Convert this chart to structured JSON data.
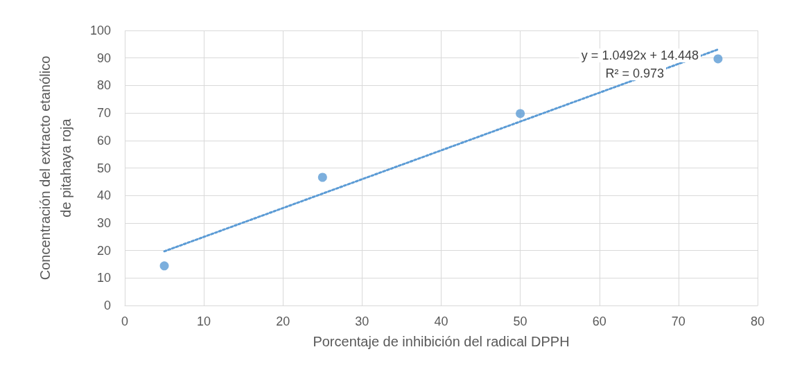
{
  "chart_data": {
    "type": "scatter",
    "xlabel": "Porcentaje de inhibición del radical DPPH",
    "ylabel": "Concentración del extracto etanólico\nde pitahaya roja",
    "series": [
      {
        "color": "#5b9bd5",
        "marker": "circle",
        "x": [
          5,
          25,
          50,
          75
        ],
        "values": [
          14.4,
          46.6,
          69.8,
          89.7
        ]
      },
      {
        "type": "line",
        "color": "#5b9bd5",
        "marker": "none",
        "line_style": "dotted",
        "x": [
          5,
          75
        ],
        "values": [
          19.7,
          93.1
        ]
      }
    ],
    "xlim": [
      0,
      80
    ],
    "xticks": [
      0,
      10,
      20,
      30,
      40,
      50,
      60,
      70,
      80
    ],
    "ylim": [
      0,
      100
    ],
    "yticks": [
      0,
      10,
      20,
      30,
      40,
      50,
      60,
      70,
      80,
      90,
      100
    ],
    "grid": true,
    "annotations": [
      "y = 1.0492x + 14.448",
      "R² = 0.973"
    ]
  }
}
